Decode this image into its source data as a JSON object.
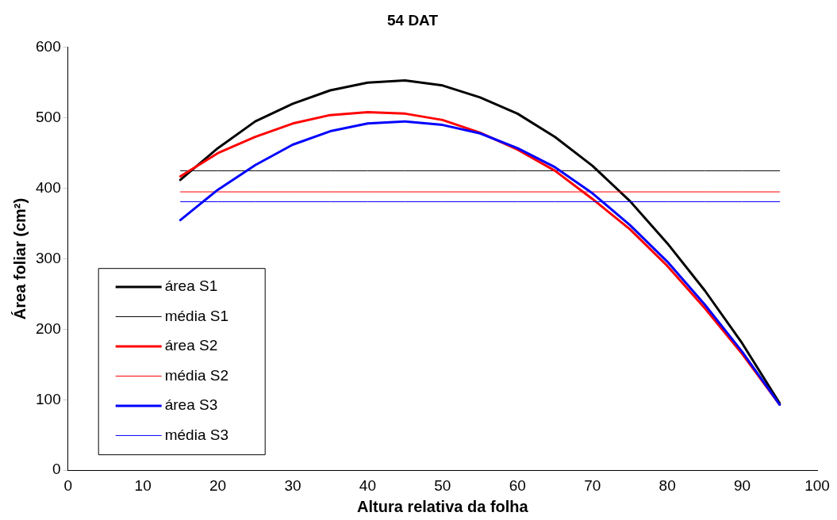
{
  "chart_data": {
    "type": "line",
    "title": "54 DAT",
    "xlabel": "Altura relativa da folha",
    "ylabel": "Área foliar (cm²)",
    "x": [
      15,
      20,
      25,
      30,
      35,
      40,
      45,
      50,
      55,
      60,
      65,
      70,
      75,
      80,
      85,
      90,
      95
    ],
    "xlim": [
      0,
      100
    ],
    "xticks": [
      0,
      10,
      20,
      30,
      40,
      50,
      60,
      70,
      80,
      90,
      100
    ],
    "ylim": [
      0,
      600
    ],
    "yticks": [
      0,
      100,
      200,
      300,
      400,
      500,
      600
    ],
    "grid": false,
    "legend": "bottom left",
    "marker": "none",
    "line_style": "solid",
    "series": [
      {
        "name": "área S1",
        "color": "#000000",
        "values": [
          412,
          457,
          495,
          520,
          539,
          550,
          553,
          546,
          529,
          506,
          473,
          432,
          382,
          322,
          255,
          180,
          95
        ]
      },
      {
        "name": "média S1",
        "color": "#000000",
        "values": [
          425,
          425,
          425,
          425,
          425,
          425,
          425,
          425,
          425,
          425,
          425,
          425,
          425,
          425,
          425,
          425,
          425
        ]
      },
      {
        "name": "área S2",
        "color": "#ff0000",
        "values": [
          417,
          450,
          473,
          492,
          504,
          508,
          506,
          497,
          479,
          455,
          425,
          385,
          342,
          290,
          230,
          165,
          93
        ]
      },
      {
        "name": "média S2",
        "color": "#ff0000",
        "values": [
          395,
          395,
          395,
          395,
          395,
          395,
          395,
          395,
          395,
          395,
          395,
          395,
          395,
          395,
          395,
          395,
          395
        ]
      },
      {
        "name": "área S3",
        "color": "#0000ff",
        "values": [
          355,
          398,
          433,
          462,
          481,
          492,
          495,
          490,
          478,
          457,
          430,
          393,
          348,
          296,
          235,
          168,
          93
        ]
      },
      {
        "name": "média S3",
        "color": "#0000ff",
        "values": [
          381,
          381,
          381,
          381,
          381,
          381,
          381,
          381,
          381,
          381,
          381,
          381,
          381,
          381,
          381,
          381,
          381
        ]
      }
    ]
  }
}
